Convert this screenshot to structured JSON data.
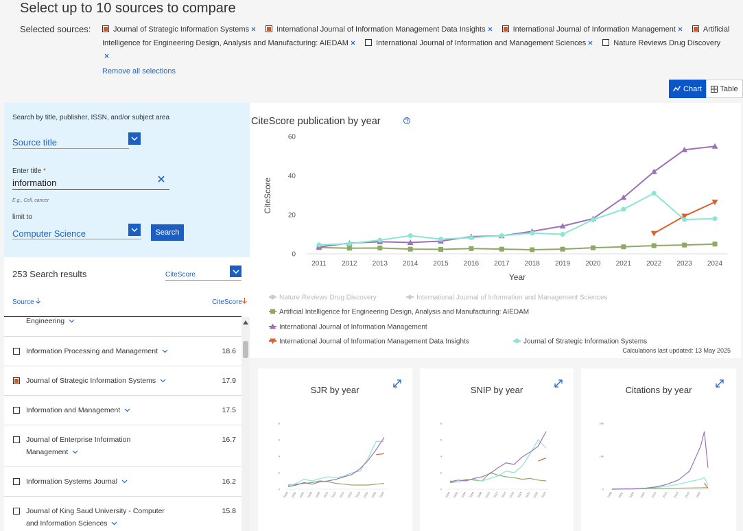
{
  "header": {
    "title": "Select up to 10 sources to compare",
    "selected_label": "Selected sources:",
    "selected_sources": [
      {
        "name": "Journal of Strategic Information Systems",
        "checked": true
      },
      {
        "name": "International Journal of Information Management Data Insights",
        "checked": true
      },
      {
        "name": "International Journal of Information Management",
        "checked": true
      },
      {
        "name": "Artificial Intelligence for Engineering Design, Analysis and Manufacturing: AIEDAM",
        "checked": true
      },
      {
        "name": "International Journal of Information and Management Sciences",
        "checked": false
      },
      {
        "name": "Nature Reviews Drug Discovery",
        "checked": false
      }
    ],
    "remove_all": "Remove all selections"
  },
  "view_toggle": {
    "options": [
      "Chart",
      "Table"
    ],
    "active": "Chart"
  },
  "search": {
    "intro": "Search by title, publisher, ISSN, and/or subject area",
    "field_select": "Source title",
    "title_label": "Enter title",
    "required_mark": "*",
    "title_value": "information",
    "hint": "E.g., Cell, cancer",
    "limit_label": "limit to",
    "limit_value": "Computer Science",
    "button": "Search"
  },
  "results": {
    "count": "253 Search results",
    "sort_select": "CiteScore",
    "col_source": "Source",
    "col_citescore": "CiteScore",
    "items": [
      {
        "title": "Engineering"
      },
      {
        "title": "Information Processing and Management",
        "citescore": 18.6,
        "checked": false
      },
      {
        "title": "Journal of Strategic Information Systems",
        "citescore": 17.9,
        "checked": true
      },
      {
        "title": "Information and Management",
        "citescore": 17.5,
        "checked": false
      },
      {
        "title": "Journal of Enterprise Information Management",
        "citescore": 16.7,
        "checked": false
      },
      {
        "title": "Information Systems Journal",
        "citescore": 16.2,
        "checked": false
      },
      {
        "title": "Journal of King Saud University - Computer and Information Sciences",
        "citescore": 15.8,
        "checked": false
      }
    ]
  },
  "chart_data": [
    {
      "type": "line",
      "title": "CiteScore publication by year",
      "x_label": "Year",
      "y_label": "CiteScore",
      "categories": [
        "2011",
        "2012",
        "2013",
        "2014",
        "2015",
        "2016",
        "2017",
        "2018",
        "2019",
        "2020",
        "2021",
        "2022",
        "2023",
        "2024"
      ],
      "ylim": [
        0,
        60
      ],
      "yticks": [
        0,
        20,
        40,
        60
      ],
      "grid": false,
      "note": "Calculations last updated: 13 May 2025",
      "series": [
        {
          "name": "Nature Reviews Drug Discovery",
          "color": "#cccccc",
          "marker": "circle",
          "hidden": true,
          "values": [
            null,
            null,
            null,
            null,
            null,
            null,
            null,
            null,
            null,
            null,
            null,
            null,
            null,
            null
          ]
        },
        {
          "name": "International Journal of Information and Management Sciences",
          "color": "#cccccc",
          "marker": "diamond",
          "hidden": true,
          "values": [
            null,
            null,
            null,
            null,
            null,
            null,
            null,
            null,
            null,
            null,
            null,
            null,
            null,
            null
          ]
        },
        {
          "name": "Artificial Intelligence for Engineering Design, Analysis and Manufacturing: AIEDAM",
          "color": "#8fa866",
          "marker": "square",
          "hidden": false,
          "values": [
            3.2,
            2.9,
            3,
            2.4,
            2.3,
            2.7,
            2.4,
            2.1,
            2.4,
            3.1,
            3.6,
            4.2,
            4.5,
            5
          ]
        },
        {
          "name": "International Journal of Information Management",
          "color": "#9c72b8",
          "marker": "triangle",
          "hidden": false,
          "values": [
            3.5,
            5.5,
            6.2,
            5.8,
            6.5,
            8.8,
            9.2,
            11.5,
            14.2,
            18,
            28.8,
            42,
            53.2,
            55
          ]
        },
        {
          "name": "International Journal of Information Management Data Insights",
          "color": "#d9622b",
          "marker": "triangle-down",
          "hidden": false,
          "values": [
            null,
            null,
            null,
            null,
            null,
            null,
            null,
            null,
            null,
            null,
            null,
            10.5,
            19.3,
            26.5
          ]
        },
        {
          "name": "Journal of Strategic Information Systems",
          "color": "#8ae6d4",
          "marker": "circle",
          "hidden": false,
          "values": [
            4.6,
            5.2,
            7,
            9.3,
            7.5,
            8.3,
            9.3,
            10.6,
            10,
            17.5,
            22.8,
            31,
            17.5,
            18
          ]
        }
      ]
    },
    {
      "type": "line",
      "title": "SJR by year",
      "x": [
        2000,
        2002,
        2004,
        2006,
        2008,
        2010,
        2012,
        2014,
        2016,
        2018,
        2020,
        2022,
        2024
      ],
      "xlim": [
        2000,
        2024
      ],
      "xticks": [
        2000,
        2002,
        2004,
        2006,
        2008,
        2010,
        2012,
        2014,
        2016,
        2018,
        2020,
        2022,
        2024
      ],
      "ylim": [
        0,
        8
      ],
      "yticks": [
        0,
        2,
        4,
        6,
        8
      ],
      "series": [
        {
          "color": "#8fa866",
          "values": [
            0.5,
            0.6,
            0.7,
            0.8,
            1,
            0.9,
            0.7,
            0.6,
            0.5,
            0.5,
            0.5,
            0.6,
            0.7
          ]
        },
        {
          "color": "#d9622b",
          "values": [
            null,
            null,
            null,
            null,
            null,
            null,
            null,
            null,
            null,
            null,
            null,
            4.2,
            4.3
          ]
        },
        {
          "color": "#8ae6d4",
          "values": [
            0.4,
            0.7,
            1.2,
            1,
            1.3,
            1.5,
            1.4,
            1.6,
            2,
            2.2,
            3.8,
            5.8,
            5.8
          ]
        },
        {
          "color": "#9c72b8",
          "values": [
            0.3,
            0.5,
            0.8,
            0.6,
            0.9,
            1,
            1.2,
            1.5,
            1.8,
            2.5,
            3.5,
            4.8,
            6.3
          ]
        }
      ]
    },
    {
      "type": "line",
      "title": "SNIP by year",
      "x": [
        2000,
        2002,
        2004,
        2006,
        2008,
        2010,
        2012,
        2014,
        2016,
        2018,
        2020,
        2022,
        2024
      ],
      "xlim": [
        2000,
        2024
      ],
      "xticks": [
        2000,
        2002,
        2004,
        2006,
        2008,
        2010,
        2012,
        2014,
        2016,
        2018,
        2020,
        2022,
        2024
      ],
      "ylim": [
        0,
        8
      ],
      "yticks": [
        0,
        2,
        4,
        6,
        8
      ],
      "series": [
        {
          "color": "#8fa866",
          "values": [
            0.8,
            0.9,
            1.2,
            1.1,
            1,
            2,
            1.7,
            1.5,
            1.4,
            1.2,
            1.3,
            1.1,
            1
          ]
        },
        {
          "color": "#d9622b",
          "values": [
            null,
            null,
            null,
            null,
            null,
            null,
            null,
            null,
            null,
            null,
            null,
            3.4,
            3.8
          ]
        },
        {
          "color": "#8ae6d4",
          "values": [
            1,
            0.9,
            1.1,
            1.2,
            1,
            1.3,
            1.6,
            2.2,
            2,
            2.8,
            4.3,
            6,
            5
          ]
        },
        {
          "color": "#9c72b8",
          "values": [
            0.9,
            1.1,
            1,
            1.3,
            1.5,
            1.9,
            2.6,
            3.2,
            3,
            3.9,
            4.5,
            5.2,
            7
          ]
        }
      ]
    },
    {
      "type": "line",
      "title": "Citations by year",
      "x": [
        1998,
        2001,
        2004,
        2007,
        2010,
        2013,
        2016,
        2019,
        2022,
        2023,
        2024
      ],
      "xlim": [
        1998,
        2024
      ],
      "xticks": [
        1998,
        2001,
        2004,
        2007,
        2010,
        2013,
        2016,
        2019,
        2022
      ],
      "ylim": [
        0,
        20000
      ],
      "yticks": [
        0,
        {
          "value": 10000,
          "label": "10k"
        },
        {
          "value": 20000,
          "label": "20k"
        }
      ],
      "series": [
        {
          "color": "#8fa866",
          "values": [
            0,
            50,
            100,
            150,
            200,
            250,
            300,
            350,
            400,
            450,
            400
          ]
        },
        {
          "color": "#d9622b",
          "values": [
            null,
            null,
            null,
            null,
            null,
            null,
            null,
            null,
            null,
            1800,
            300
          ]
        },
        {
          "color": "#8ae6d4",
          "values": [
            0,
            20,
            60,
            200,
            500,
            900,
            1500,
            2300,
            3000,
            3500,
            1200
          ]
        },
        {
          "color": "#9c72b8",
          "values": [
            0,
            50,
            100,
            300,
            700,
            1500,
            2800,
            5500,
            13000,
            17500,
            6500
          ]
        }
      ]
    }
  ]
}
